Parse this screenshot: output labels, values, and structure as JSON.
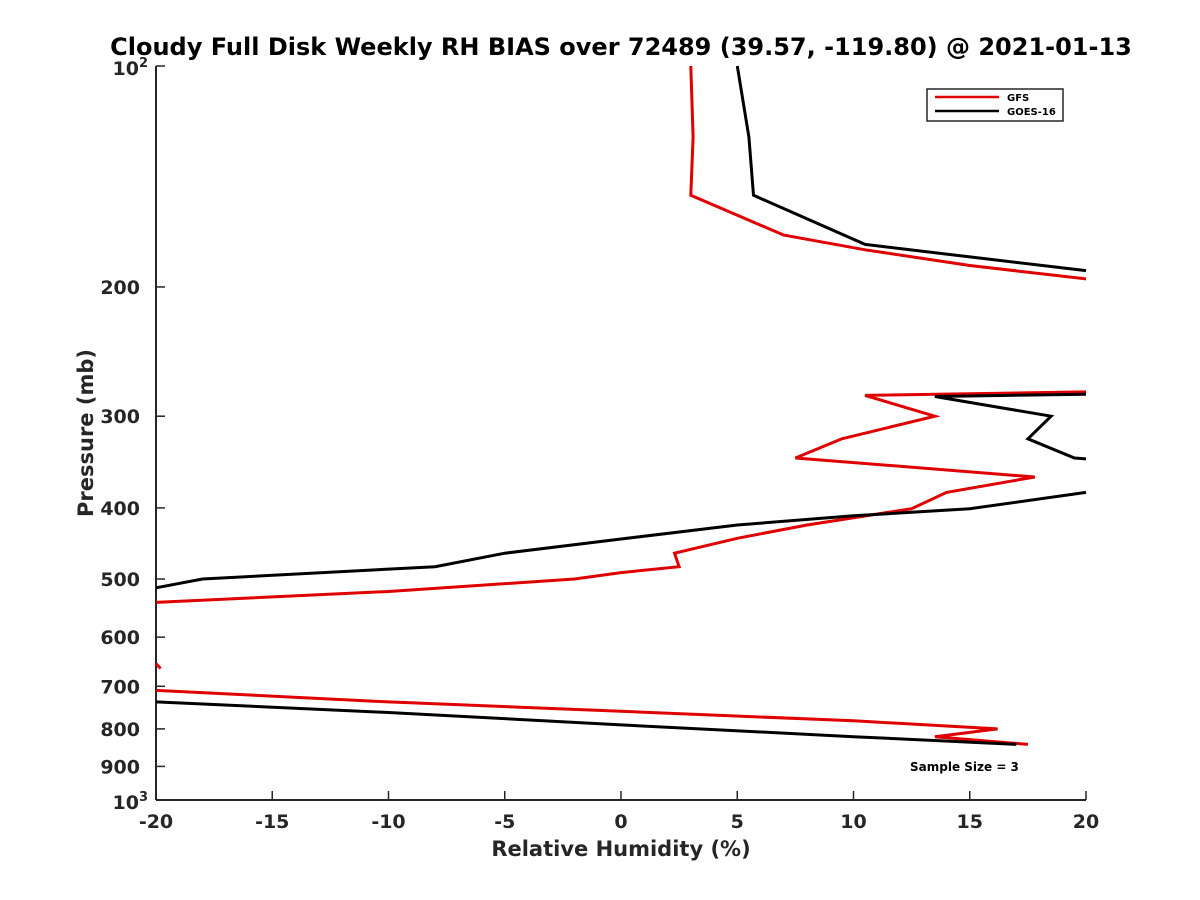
{
  "chart_data": {
    "type": "line",
    "title": "Cloudy Full Disk Weekly RH BIAS over 72489 (39.57, -119.80) @ 2021-01-13",
    "xlabel": "Relative Humidity (%)",
    "ylabel": "Pressure (mb)",
    "xlim": [
      -20,
      20
    ],
    "ylim": [
      100,
      1000
    ],
    "y_scale": "log",
    "y_reversed": true,
    "x_ticks": [
      -20,
      -15,
      -10,
      -5,
      0,
      5,
      10,
      15,
      20
    ],
    "x_tick_labels": [
      "-20",
      "-15",
      "-10",
      "-5",
      "0",
      "5",
      "10",
      "15",
      "20"
    ],
    "y_ticks": [
      200,
      300,
      400,
      500,
      600,
      700,
      800,
      900
    ],
    "y_tick_labels": [
      "200",
      "300",
      "400",
      "500",
      "600",
      "700",
      "800",
      "900"
    ],
    "y_decade_ticks": [
      {
        "value": 100,
        "base": "10",
        "exp": "2"
      },
      {
        "value": 1000,
        "base": "10",
        "exp": "3"
      }
    ],
    "grid": false,
    "legend_position": "top-right",
    "annotation": "Sample Size = 3",
    "series": [
      {
        "name": "GFS",
        "color": "#e00000",
        "segments": [
          [
            [
              3.0,
              100
            ],
            [
              3.1,
              125
            ],
            [
              3.0,
              150
            ],
            [
              7.0,
              170
            ],
            [
              10.5,
              178
            ],
            [
              15.0,
              187
            ],
            [
              20.0,
              195
            ]
          ],
          [
            [
              20.0,
              278
            ],
            [
              10.5,
              281
            ],
            [
              13.5,
              300
            ],
            [
              9.5,
              322
            ],
            [
              7.5,
              342
            ],
            [
              17.8,
              363
            ],
            [
              14.0,
              381
            ],
            [
              12.5,
              401
            ],
            [
              8.0,
              422
            ],
            [
              5.0,
              440
            ],
            [
              2.3,
              461
            ],
            [
              2.5,
              481
            ],
            [
              0.0,
              490
            ],
            [
              -2.0,
              500
            ],
            [
              -10.0,
              520
            ],
            [
              -20.0,
              538
            ]
          ],
          [
            [
              -20.0,
              652
            ],
            [
              -19.8,
              662
            ]
          ],
          [
            [
              -20.0,
              709
            ],
            [
              -10.0,
              735
            ],
            [
              0.0,
              757
            ],
            [
              10.0,
              780
            ],
            [
              16.2,
              800
            ],
            [
              13.5,
              820
            ],
            [
              17.5,
              840
            ]
          ]
        ]
      },
      {
        "name": "GOES-16",
        "color": "#000000",
        "segments": [
          [
            [
              5.0,
              100
            ],
            [
              5.5,
              125
            ],
            [
              5.7,
              150
            ],
            [
              10.5,
              175
            ],
            [
              15.0,
              182
            ],
            [
              20.0,
              190
            ]
          ],
          [
            [
              20.0,
              280
            ],
            [
              13.5,
              282
            ],
            [
              18.5,
              300
            ],
            [
              17.5,
              322
            ],
            [
              19.5,
              342
            ],
            [
              20.0,
              343
            ]
          ],
          [
            [
              20.0,
              381
            ],
            [
              15.0,
              401
            ],
            [
              10.0,
              410
            ],
            [
              5.0,
              422
            ],
            [
              0.0,
              441
            ],
            [
              -5.0,
              461
            ],
            [
              -8.0,
              481
            ],
            [
              -18.0,
              500
            ],
            [
              -20.0,
              514
            ]
          ],
          [
            [
              -20.0,
              735
            ],
            [
              -10.0,
              760
            ],
            [
              0.0,
              790
            ],
            [
              10.0,
              820
            ],
            [
              17.0,
              840
            ]
          ]
        ]
      }
    ]
  }
}
